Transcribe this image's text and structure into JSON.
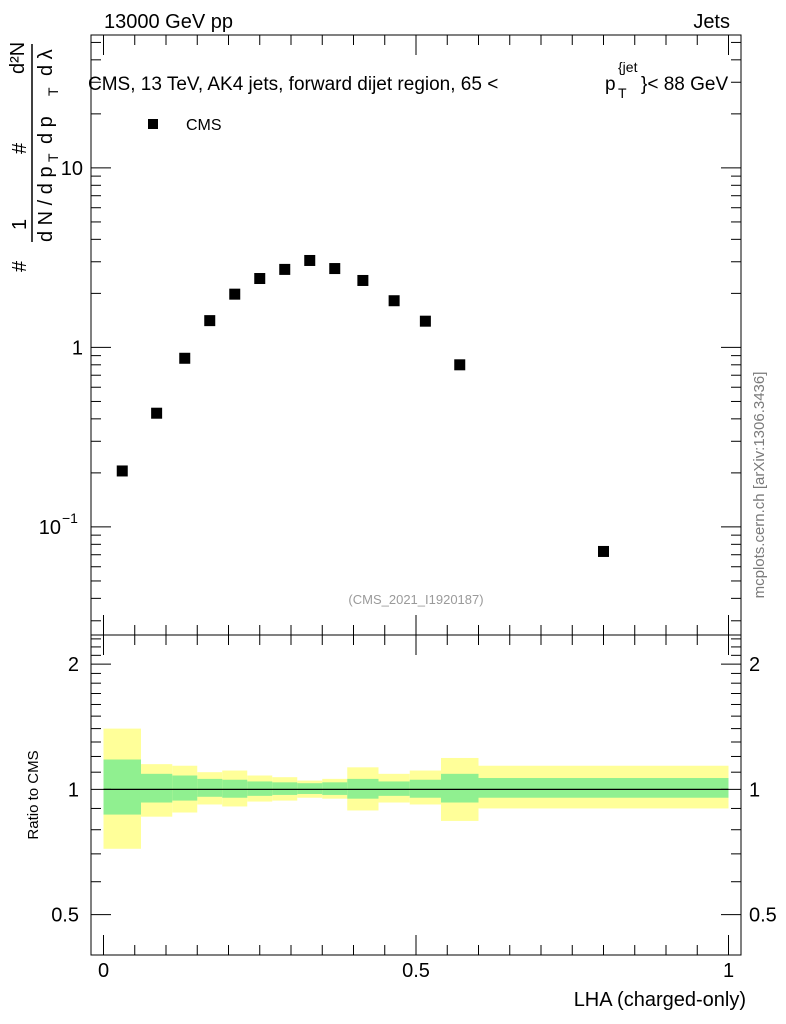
{
  "header": {
    "energy_label": "13000 GeV pp",
    "category_label": "Jets"
  },
  "credit": "mcplots.cern.ch [arXiv:1306.3436]",
  "watermark": "(CMS_2021_I1920187)",
  "chart_data": {
    "type": "scatter",
    "title": "CMS, 13 TeV, AK4 jets, forward dijet region, 65 < p_T^{jet} < 88 GeV",
    "title_parts": {
      "prefix": "CMS, 13 TeV, AK4 jets, forward dijet region, 65 <",
      "p": "p",
      "jet_sup": "{jet",
      "t_sub": "T",
      "suffix": "}< 88 GeV"
    },
    "xlabel": "LHA (charged-only)",
    "ylabel": "1/dN/dp_T d^2N/dp_T dλ",
    "ylabel_parts": {
      "hash": "#",
      "one": "1",
      "den": "d N / d p",
      "t": "T",
      "hash2": "#",
      "d2n": "d²N",
      "dp": "d p",
      "dlambda": "d λ"
    },
    "legend": [
      {
        "name": "CMS",
        "marker": "square",
        "color": "#000000"
      }
    ],
    "xlim": [
      -0.02,
      1.02
    ],
    "ylim": [
      0.025,
      55
    ],
    "yscale": "log",
    "xticks": [
      {
        "value": 0,
        "label": "0"
      },
      {
        "value": 0.5,
        "label": "0.5"
      },
      {
        "value": 1,
        "label": "1"
      }
    ],
    "yticks_main": [
      {
        "value": 0.1,
        "base": "10",
        "exp": "−1"
      },
      {
        "value": 1,
        "label": "1"
      },
      {
        "value": 10,
        "label": "10"
      }
    ],
    "series": [
      {
        "name": "CMS",
        "x": [
          0.03,
          0.085,
          0.13,
          0.17,
          0.21,
          0.25,
          0.29,
          0.33,
          0.37,
          0.415,
          0.465,
          0.515,
          0.57,
          0.8
        ],
        "y": [
          0.205,
          0.43,
          0.87,
          1.41,
          1.98,
          2.42,
          2.72,
          3.05,
          2.75,
          2.36,
          1.82,
          1.4,
          0.8,
          0.073
        ]
      }
    ],
    "ratio": {
      "ylabel": "Ratio to CMS",
      "ylim": [
        0.4,
        2.35
      ],
      "yscale": "log",
      "yticks": [
        {
          "value": 0.5,
          "label": "0.5"
        },
        {
          "value": 1,
          "label": "1"
        },
        {
          "value": 2,
          "label": "2"
        }
      ],
      "reference": 1.0,
      "bins": [
        {
          "xlo": 0.0,
          "xhi": 0.06,
          "inner": [
            0.87,
            1.18
          ],
          "outer": [
            0.72,
            1.4
          ]
        },
        {
          "xlo": 0.06,
          "xhi": 0.11,
          "inner": [
            0.93,
            1.09
          ],
          "outer": [
            0.86,
            1.15
          ]
        },
        {
          "xlo": 0.11,
          "xhi": 0.15,
          "inner": [
            0.94,
            1.08
          ],
          "outer": [
            0.88,
            1.14
          ]
        },
        {
          "xlo": 0.15,
          "xhi": 0.19,
          "inner": [
            0.96,
            1.06
          ],
          "outer": [
            0.92,
            1.1
          ]
        },
        {
          "xlo": 0.19,
          "xhi": 0.23,
          "inner": [
            0.955,
            1.055
          ],
          "outer": [
            0.91,
            1.11
          ]
        },
        {
          "xlo": 0.23,
          "xhi": 0.27,
          "inner": [
            0.965,
            1.045
          ],
          "outer": [
            0.935,
            1.08
          ]
        },
        {
          "xlo": 0.27,
          "xhi": 0.31,
          "inner": [
            0.97,
            1.04
          ],
          "outer": [
            0.94,
            1.07
          ]
        },
        {
          "xlo": 0.31,
          "xhi": 0.35,
          "inner": [
            0.975,
            1.035
          ],
          "outer": [
            0.955,
            1.05
          ]
        },
        {
          "xlo": 0.35,
          "xhi": 0.39,
          "inner": [
            0.97,
            1.04
          ],
          "outer": [
            0.95,
            1.06
          ]
        },
        {
          "xlo": 0.39,
          "xhi": 0.44,
          "inner": [
            0.95,
            1.06
          ],
          "outer": [
            0.89,
            1.13
          ]
        },
        {
          "xlo": 0.44,
          "xhi": 0.49,
          "inner": [
            0.965,
            1.045
          ],
          "outer": [
            0.93,
            1.09
          ]
        },
        {
          "xlo": 0.49,
          "xhi": 0.54,
          "inner": [
            0.955,
            1.055
          ],
          "outer": [
            0.92,
            1.11
          ]
        },
        {
          "xlo": 0.54,
          "xhi": 0.6,
          "inner": [
            0.93,
            1.09
          ],
          "outer": [
            0.84,
            1.19
          ]
        },
        {
          "xlo": 0.6,
          "xhi": 1.0,
          "inner": [
            0.955,
            1.065
          ],
          "outer": [
            0.9,
            1.14
          ]
        }
      ]
    },
    "colors": {
      "inner_band": "#90f090",
      "outer_band": "#ffff99",
      "marker": "#000000",
      "line": "#000000"
    }
  }
}
